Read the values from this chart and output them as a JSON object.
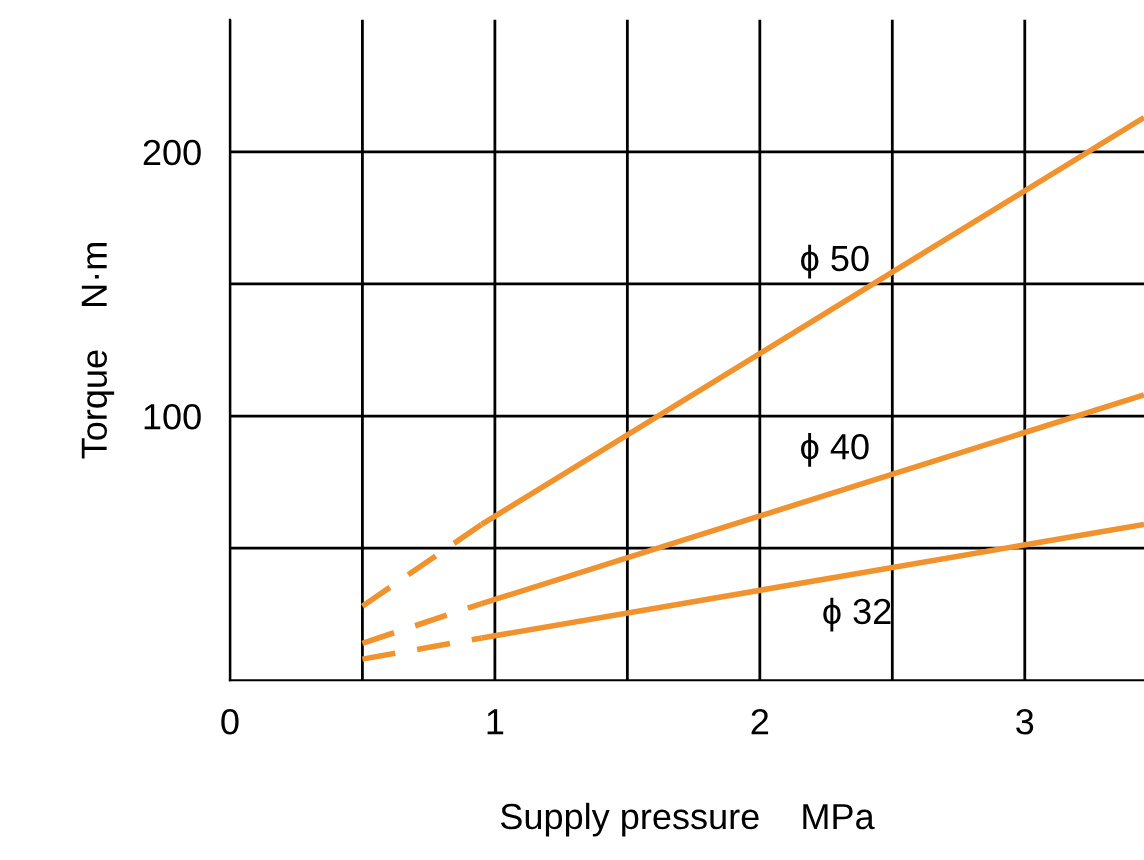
{
  "chart_data": {
    "type": "line",
    "xlabel": "Supply pressure    MPa",
    "ylabel": "Torque    N·m",
    "xlim": [
      0,
      3.45
    ],
    "ylim": [
      0,
      250
    ],
    "xticks": [
      0,
      {
        "value": 0.5,
        "label": null
      },
      1,
      {
        "value": 1.5,
        "label": null
      },
      2,
      {
        "value": 2.5,
        "label": null
      },
      3
    ],
    "yticks": [
      {
        "value": 50,
        "label": null
      },
      100,
      {
        "value": 150,
        "label": null
      },
      200
    ],
    "grid": true,
    "marker": "none",
    "series": [
      {
        "x": [
          0.5,
          0.95
        ],
        "values": [
          28,
          59
        ],
        "color": "#f0922e",
        "line_style": "dashed"
      },
      {
        "name": "ϕ 50",
        "x": [
          0.95,
          3.45
        ],
        "values": [
          59,
          213
        ],
        "color": "#f0922e",
        "line_style": "solid"
      },
      {
        "x": [
          0.5,
          0.95
        ],
        "values": [
          14,
          29
        ],
        "color": "#f0922e",
        "line_style": "dashed"
      },
      {
        "name": "ϕ 40",
        "x": [
          0.95,
          3.45
        ],
        "values": [
          29,
          108
        ],
        "color": "#f0922e",
        "line_style": "solid"
      },
      {
        "x": [
          0.5,
          0.95
        ],
        "values": [
          8,
          16
        ],
        "color": "#f0922e",
        "line_style": "dashed"
      },
      {
        "name": "ϕ 32",
        "x": [
          0.95,
          3.45
        ],
        "values": [
          16,
          59
        ],
        "color": "#f0922e",
        "line_style": "solid"
      }
    ]
  }
}
